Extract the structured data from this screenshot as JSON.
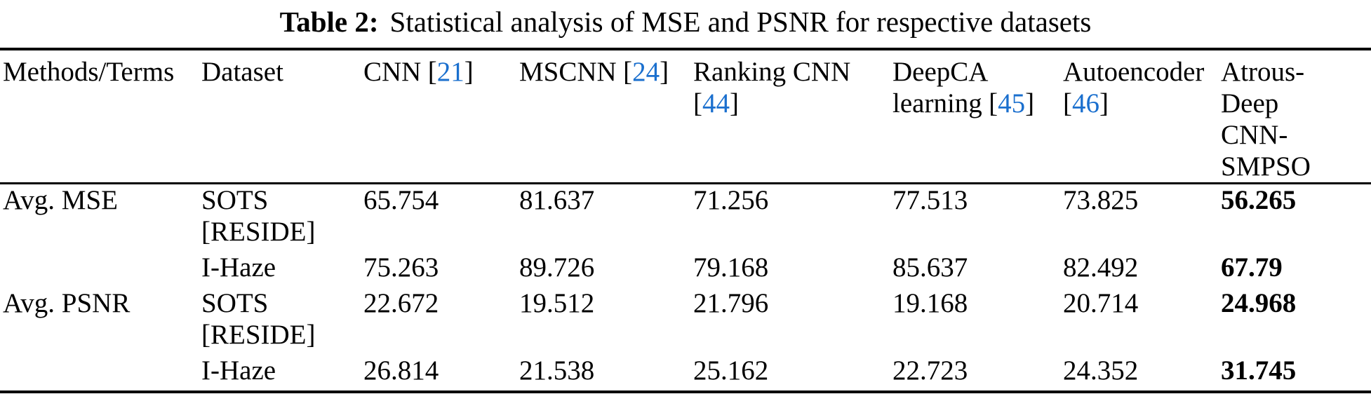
{
  "caption": {
    "label": "Table 2:",
    "text": "Statistical analysis of MSE and PSNR for respective datasets"
  },
  "punct": {
    "lbracket": "[",
    "rbracket": "]"
  },
  "colors": {
    "citation_blue": "#1a6fce",
    "text": "#000000",
    "background": "#ffffff",
    "rule": "#000000"
  },
  "table": {
    "columns": [
      {
        "label": "Methods/Terms"
      },
      {
        "label": "Dataset"
      },
      {
        "label": "CNN",
        "cite": "21"
      },
      {
        "label": "MSCNN",
        "cite": "24"
      },
      {
        "label": "Ranking CNN",
        "cite": "44"
      },
      {
        "label": "DeepCA\nlearning",
        "cite": "45"
      },
      {
        "label": "Autoencoder",
        "cite": "46"
      },
      {
        "label": "Atrous-\nDeep\nCNN-\nSMPSO"
      }
    ],
    "rows": [
      {
        "method": "Avg. MSE",
        "dataset": "SOTS\n[RESIDE]",
        "values": [
          "65.754",
          "81.637",
          "71.256",
          "77.513",
          "73.825"
        ],
        "best": "56.265"
      },
      {
        "method": "",
        "dataset": "I-Haze",
        "values": [
          "75.263",
          "89.726",
          "79.168",
          "85.637",
          "82.492"
        ],
        "best": "67.79"
      },
      {
        "method": "Avg. PSNR",
        "dataset": "SOTS\n[RESIDE]",
        "values": [
          "22.672",
          "19.512",
          "21.796",
          "19.168",
          "20.714"
        ],
        "best": "24.968"
      },
      {
        "method": "",
        "dataset": "I-Haze",
        "values": [
          "26.814",
          "21.538",
          "25.162",
          "22.723",
          "24.352"
        ],
        "best": "31.745"
      }
    ]
  }
}
